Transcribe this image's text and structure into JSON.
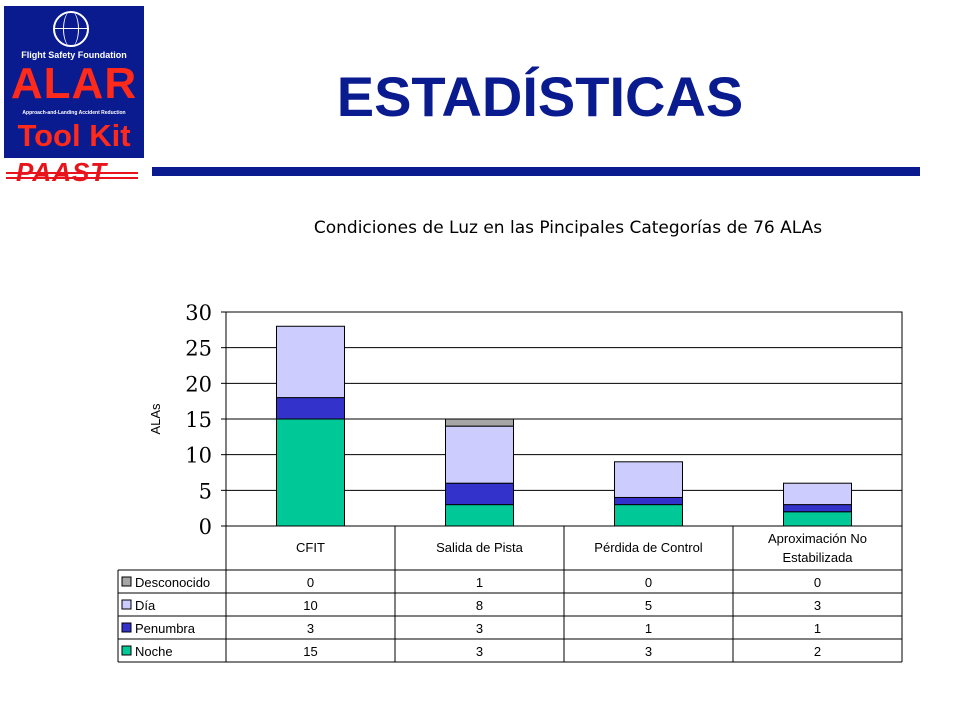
{
  "header": {
    "title": "ESTADÍSTICAS",
    "logo": {
      "org": "Flight Safety Foundation",
      "name": "ALAR",
      "subtitle": "Approach-and-Landing Accident Reduction",
      "kit": "Tool Kit",
      "tag": "PAAST"
    }
  },
  "colors": {
    "brand_blue": "#0a1a8f",
    "logo_red": "#ff2a1a",
    "tag_red": "#e8141b"
  },
  "chart_data": {
    "type": "bar",
    "stacked": true,
    "title": "Condiciones de Luz en las Pincipales Categorías de 76 ALAs",
    "ylabel": "ALAs",
    "xlabel": "",
    "ylim": [
      0,
      30
    ],
    "yticks": [
      0,
      5,
      10,
      15,
      20,
      25,
      30
    ],
    "grid": true,
    "legend": "table-left",
    "categories": [
      "CFIT",
      "Salida de Pista",
      "Pérdida de Control",
      "Aproximación No Estabilizada"
    ],
    "series": [
      {
        "name": "Noche",
        "color": "#00c896",
        "values": [
          15,
          3,
          3,
          2
        ]
      },
      {
        "name": "Penumbra",
        "color": "#3333cc",
        "values": [
          3,
          3,
          1,
          1
        ]
      },
      {
        "name": "Día",
        "color": "#ccccff",
        "values": [
          10,
          8,
          5,
          3
        ]
      },
      {
        "name": "Desconocido",
        "color": "#a6a6a6",
        "values": [
          0,
          1,
          0,
          0
        ]
      }
    ],
    "table_order": [
      "Desconocido",
      "Día",
      "Penumbra",
      "Noche"
    ]
  }
}
